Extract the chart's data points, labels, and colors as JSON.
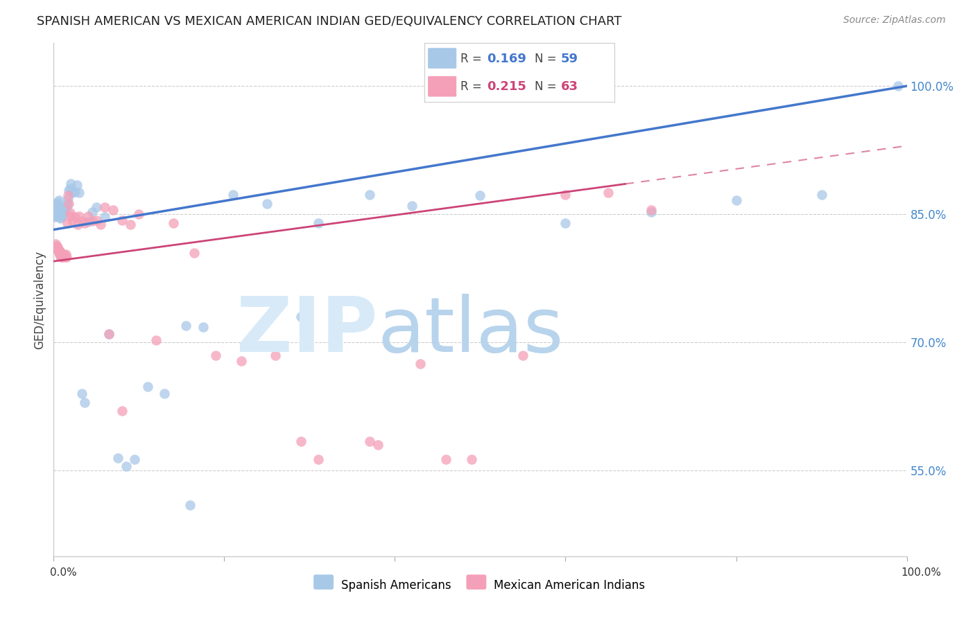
{
  "title": "SPANISH AMERICAN VS MEXICAN AMERICAN INDIAN GED/EQUIVALENCY CORRELATION CHART",
  "source": "Source: ZipAtlas.com",
  "ylabel": "GED/Equivalency",
  "xlim": [
    0.0,
    1.0
  ],
  "ylim": [
    0.45,
    1.05
  ],
  "yticks": [
    0.55,
    0.7,
    0.85,
    1.0
  ],
  "ytick_labels": [
    "55.0%",
    "70.0%",
    "85.0%",
    "100.0%"
  ],
  "legend_labels": [
    "Spanish Americans",
    "Mexican American Indians"
  ],
  "blue_R": 0.169,
  "blue_N": 59,
  "pink_R": 0.215,
  "pink_N": 63,
  "blue_color": "#A8C8E8",
  "pink_color": "#F4A0B8",
  "blue_line_color": "#4477CC",
  "pink_line_color": "#CC4477",
  "blue_line_y0": 0.832,
  "blue_line_y1": 1.0,
  "pink_line_y0": 0.795,
  "pink_line_y1": 0.93,
  "pink_solid_xend": 0.67,
  "blue_x": [
    0.001,
    0.002,
    0.003,
    0.003,
    0.004,
    0.004,
    0.005,
    0.005,
    0.006,
    0.006,
    0.007,
    0.007,
    0.008,
    0.008,
    0.009,
    0.009,
    0.01,
    0.01,
    0.011,
    0.012,
    0.013,
    0.014,
    0.015,
    0.016,
    0.017,
    0.018,
    0.019,
    0.02,
    0.022,
    0.025,
    0.027,
    0.03,
    0.033,
    0.036,
    0.04,
    0.045,
    0.05,
    0.06,
    0.065,
    0.075,
    0.085,
    0.095,
    0.11,
    0.13,
    0.155,
    0.175,
    0.21,
    0.25,
    0.31,
    0.37,
    0.42,
    0.5,
    0.6,
    0.7,
    0.8,
    0.9,
    0.99,
    0.16,
    0.29
  ],
  "blue_y": [
    0.847,
    0.848,
    0.854,
    0.857,
    0.849,
    0.862,
    0.851,
    0.864,
    0.853,
    0.866,
    0.847,
    0.858,
    0.845,
    0.856,
    0.847,
    0.855,
    0.848,
    0.855,
    0.852,
    0.855,
    0.853,
    0.857,
    0.859,
    0.862,
    0.868,
    0.878,
    0.88,
    0.886,
    0.875,
    0.876,
    0.884,
    0.875,
    0.64,
    0.63,
    0.841,
    0.853,
    0.858,
    0.847,
    0.71,
    0.565,
    0.555,
    0.563,
    0.648,
    0.64,
    0.72,
    0.718,
    0.873,
    0.862,
    0.84,
    0.873,
    0.86,
    0.872,
    0.84,
    0.853,
    0.866,
    0.873,
    1.0,
    0.51,
    0.73
  ],
  "pink_x": [
    0.001,
    0.002,
    0.002,
    0.003,
    0.003,
    0.004,
    0.004,
    0.005,
    0.005,
    0.006,
    0.006,
    0.007,
    0.007,
    0.008,
    0.008,
    0.009,
    0.009,
    0.01,
    0.01,
    0.011,
    0.012,
    0.013,
    0.014,
    0.015,
    0.016,
    0.017,
    0.018,
    0.019,
    0.02,
    0.022,
    0.025,
    0.028,
    0.03,
    0.033,
    0.036,
    0.04,
    0.045,
    0.05,
    0.055,
    0.06,
    0.07,
    0.08,
    0.09,
    0.1,
    0.12,
    0.14,
    0.165,
    0.19,
    0.22,
    0.26,
    0.31,
    0.37,
    0.43,
    0.49,
    0.55,
    0.6,
    0.65,
    0.7,
    0.065,
    0.29,
    0.38,
    0.46,
    0.08
  ],
  "pink_y": [
    0.811,
    0.812,
    0.815,
    0.81,
    0.812,
    0.809,
    0.813,
    0.808,
    0.811,
    0.805,
    0.808,
    0.803,
    0.807,
    0.801,
    0.805,
    0.8,
    0.803,
    0.8,
    0.803,
    0.801,
    0.803,
    0.8,
    0.803,
    0.8,
    0.84,
    0.872,
    0.862,
    0.852,
    0.848,
    0.843,
    0.847,
    0.838,
    0.848,
    0.842,
    0.84,
    0.848,
    0.842,
    0.843,
    0.838,
    0.858,
    0.855,
    0.843,
    0.838,
    0.85,
    0.703,
    0.84,
    0.805,
    0.685,
    0.678,
    0.685,
    0.563,
    0.584,
    0.675,
    0.563,
    0.685,
    0.873,
    0.875,
    0.855,
    0.71,
    0.584,
    0.58,
    0.563,
    0.62
  ]
}
